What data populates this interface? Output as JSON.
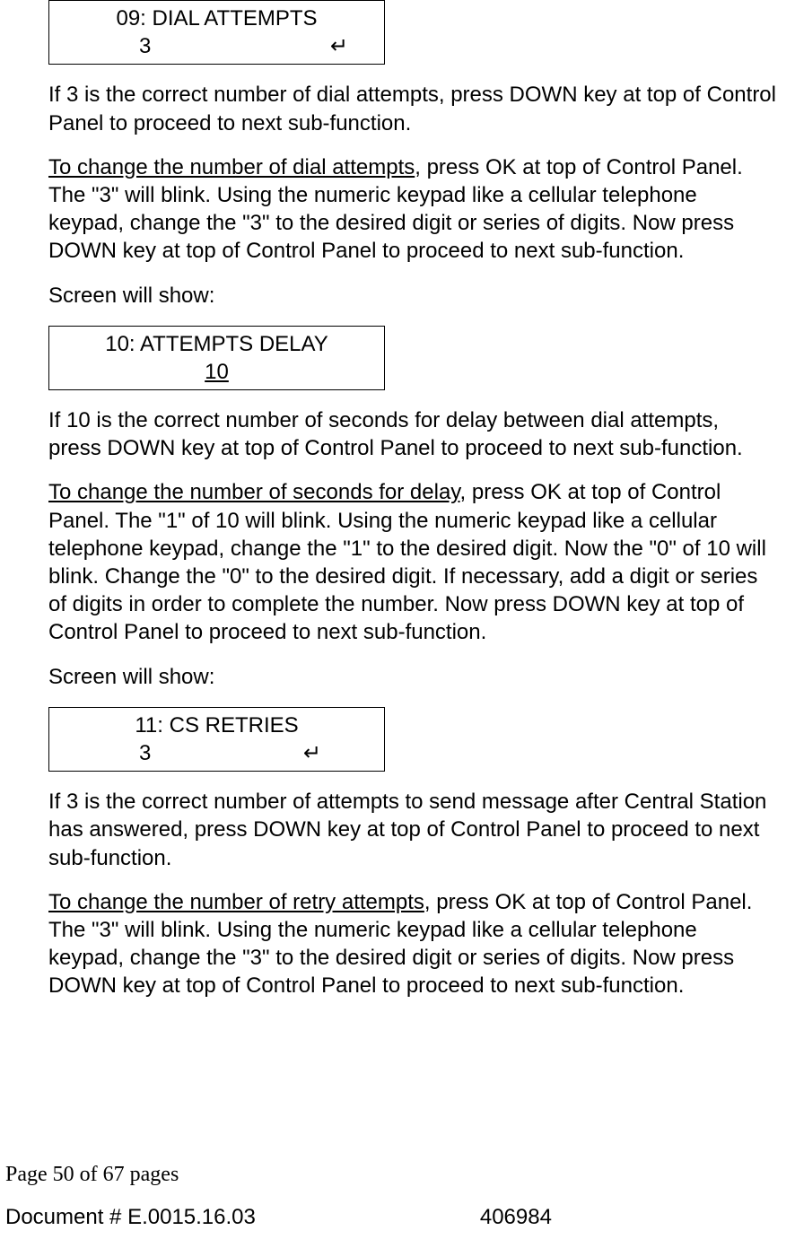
{
  "screen1": {
    "line1": "09: DIAL ATTEMPTS",
    "value": "3",
    "symbol": "↵"
  },
  "para1": "If 3 is the correct number of dial attempts, press DOWN key at top of Control Panel to proceed to next sub-function.",
  "para2_underline": "To change the number of dial attempts",
  "para2_rest": ", press OK at top of Control Panel. The \"3\" will blink. Using the numeric keypad like a cellular telephone keypad, change the \"3\" to the desired digit or series of digits. Now press DOWN key at top of Control Panel to proceed to next sub-function.",
  "para3": "Screen will show:",
  "screen2": {
    "line1": "10: ATTEMPTS DELAY",
    "value": "10"
  },
  "para4": "If 10 is the correct number of seconds for delay between dial attempts, press DOWN key at top of Control Panel to proceed to next sub-function.",
  "para5_underline": "To change the number of seconds for delay",
  "para5_rest": ", press OK at top of Control Panel. The \"1\" of 10 will blink. Using the numeric keypad like a cellular telephone keypad, change the \"1\" to the desired digit. Now the \"0\" of 10 will blink. Change the \"0\" to the desired digit. If necessary, add a digit or series of digits in order to complete the number. Now press DOWN key at top of Control Panel to proceed to next sub-function.",
  "para6": "Screen will show:",
  "screen3": {
    "line1": "11: CS RETRIES",
    "value": "3",
    "symbol": "↵"
  },
  "para7": "If 3 is the correct number of attempts to send message after Central Station has answered, press DOWN key at top of Control Panel to proceed to next sub-function.",
  "para8_underline": "To change the number of retry attempts",
  "para8_rest": ", press OK at top of Control Panel. The \"3\" will blink. Using the numeric keypad like a cellular telephone keypad, change the \"3\" to the desired digit or series of digits. Now press DOWN key at top of Control Panel to proceed to next sub-function.",
  "footer": {
    "page": "Page 50 of  67 pages",
    "doc_label": "Document # E.0015.16.03",
    "doc_num": "406984"
  }
}
